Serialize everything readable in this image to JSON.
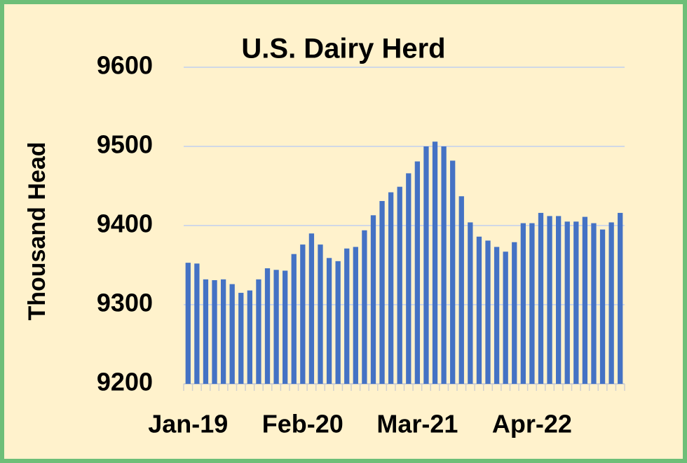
{
  "chart_data": {
    "type": "bar",
    "title": "U.S. Dairy Herd",
    "y_label": "Thousand Head",
    "categories": [
      "Jan-19",
      null,
      null,
      null,
      null,
      null,
      null,
      null,
      null,
      null,
      null,
      null,
      null,
      "Feb-20",
      null,
      null,
      null,
      null,
      null,
      null,
      null,
      null,
      null,
      null,
      null,
      null,
      "Mar-21",
      null,
      null,
      null,
      null,
      null,
      null,
      null,
      null,
      null,
      null,
      null,
      null,
      "Apr-22",
      null,
      null,
      null,
      null,
      null,
      null,
      null,
      null,
      null,
      null
    ],
    "values": [
      9353,
      9352,
      9332,
      9331,
      9332,
      9326,
      9315,
      9318,
      9332,
      9346,
      9344,
      9343,
      9364,
      9376,
      9390,
      9376,
      9359,
      9355,
      9371,
      9373,
      9394,
      9413,
      9431,
      9442,
      9449,
      9466,
      9481,
      9500,
      9506,
      9500,
      9482,
      9437,
      9404,
      9386,
      9381,
      9373,
      9367,
      9379,
      9403,
      9403,
      9416,
      9412,
      9412,
      9405,
      9405,
      9411,
      9403,
      9395,
      9404,
      9416
    ],
    "color": "#4472c4",
    "ylim": [
      9200,
      9600
    ],
    "yticks": [
      9200,
      9300,
      9400,
      9500,
      9600
    ],
    "grid": true
  }
}
